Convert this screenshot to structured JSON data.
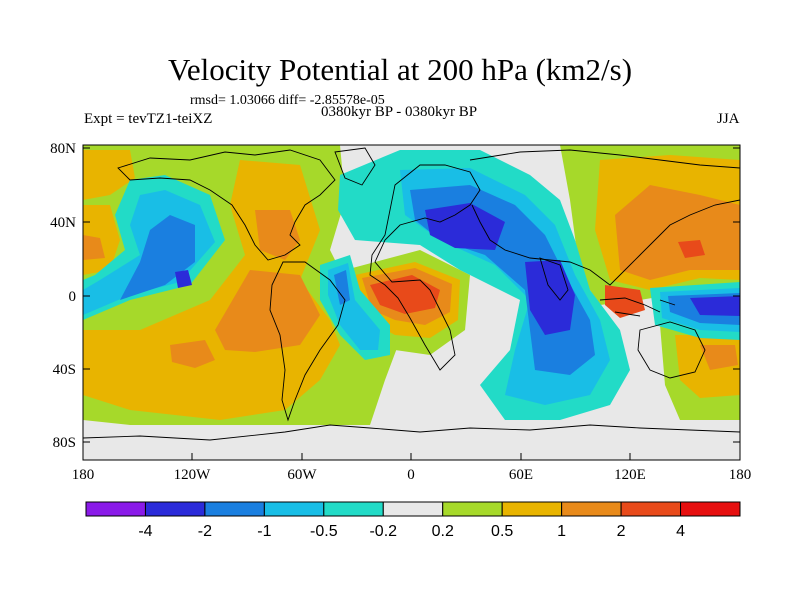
{
  "title": "Velocity Potential at 200 hPa (km2/s)",
  "stats": "rmsd= 1.03066 diff= -2.85578e-05",
  "experiment": "Expt = tevTZ1-teiXZ",
  "period": "0380kyr BP - 0380kyr BP",
  "season": "JJA",
  "lat_ticks": [
    "80N",
    "40N",
    "0",
    "40S",
    "80S"
  ],
  "lon_ticks": [
    "180",
    "120W",
    "60W",
    "0",
    "60E",
    "120E",
    "180"
  ],
  "colorbar": {
    "colors": [
      "#8a1ae8",
      "#2b2bd9",
      "#1a7fe0",
      "#19bee6",
      "#22dbc7",
      "#e8e8e8",
      "#a6d92a",
      "#e8b400",
      "#e88a1a",
      "#e84a1a",
      "#e60f0f"
    ],
    "labels": [
      "-4",
      "-2",
      "-1",
      "-0.5",
      "-0.2",
      "0.2",
      "0.5",
      "1",
      "2",
      "4"
    ]
  }
}
